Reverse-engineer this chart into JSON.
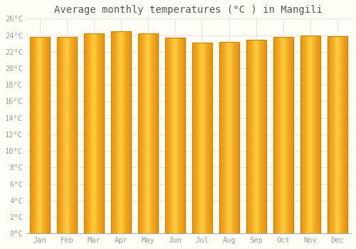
{
  "title": "Average monthly temperatures (°C ) in Mangili",
  "months": [
    "Jan",
    "Feb",
    "Mar",
    "Apr",
    "May",
    "Jun",
    "Jul",
    "Aug",
    "Sep",
    "Oct",
    "Nov",
    "Dec"
  ],
  "values": [
    23.8,
    23.8,
    24.2,
    24.5,
    24.2,
    23.7,
    23.1,
    23.2,
    23.4,
    23.8,
    24.0,
    23.9
  ],
  "bar_color_center": "#FFD040",
  "bar_color_edge": "#E89010",
  "bar_outline_color": "#BB8800",
  "ylim": [
    0,
    26
  ],
  "yticks": [
    0,
    2,
    4,
    6,
    8,
    10,
    12,
    14,
    16,
    18,
    20,
    22,
    24,
    26
  ],
  "background_color": "#FEFEF6",
  "grid_color": "#DDDDDD",
  "title_fontsize": 10,
  "tick_fontsize": 7.5,
  "title_color": "#555555",
  "tick_color": "#999999"
}
